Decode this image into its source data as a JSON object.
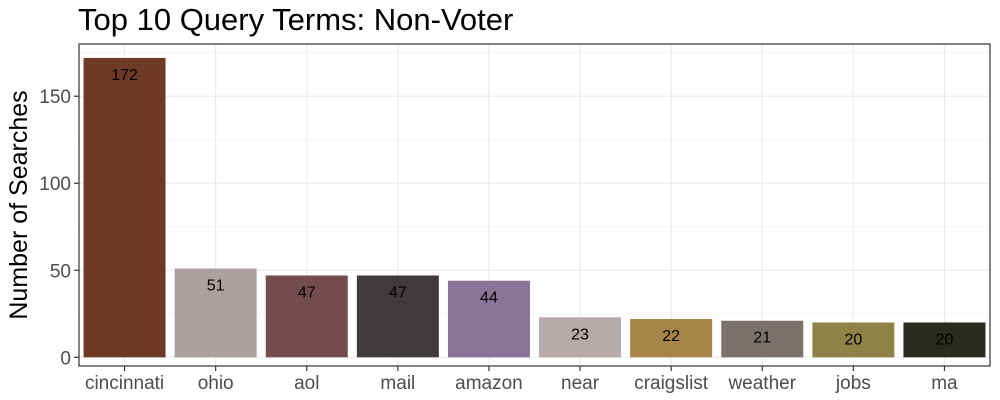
{
  "chart_data": {
    "type": "bar",
    "title": "Top 10 Query Terms: Non-Voter",
    "xlabel": "",
    "ylabel": "Number of Searches",
    "categories": [
      "cincinnati",
      "ohio",
      "aol",
      "mail",
      "amazon",
      "near",
      "craigslist",
      "weather",
      "jobs",
      "ma"
    ],
    "values": [
      172,
      51,
      47,
      47,
      44,
      23,
      22,
      21,
      20,
      20
    ],
    "data_labels": [
      "172",
      "51",
      "47",
      "47",
      "44",
      "23",
      "22",
      "21",
      "20",
      "20"
    ],
    "colors": [
      "#6e3a26",
      "#aca19f",
      "#744b4f",
      "#403a3a",
      "#8a7598",
      "#b7aaab",
      "#a78447",
      "#7b726d",
      "#8e8246",
      "#2b2a1f"
    ],
    "ylim": [
      -5,
      180
    ],
    "yticks": [
      0,
      50,
      100,
      150
    ],
    "ytick_labels": [
      "0",
      "50",
      "100",
      "150"
    ],
    "grid": true,
    "legend": "none"
  }
}
